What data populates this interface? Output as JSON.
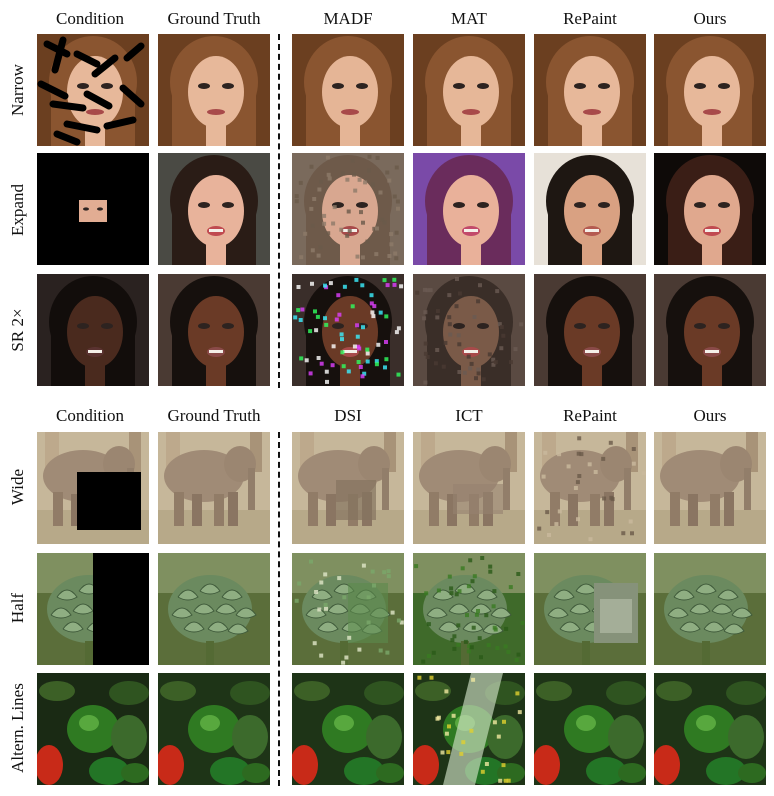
{
  "panel_top": {
    "headers": [
      "Condition",
      "Ground Truth",
      "MADF",
      "MAT",
      "RePaint",
      "Ours"
    ],
    "rows": [
      {
        "label": "Narrow",
        "subject": "face-blonde"
      },
      {
        "label": "Expand",
        "subject": "face-dark"
      },
      {
        "label": "SR 2×",
        "subject": "face-black"
      }
    ]
  },
  "panel_bottom": {
    "headers": [
      "Condition",
      "Ground Truth",
      "DSI",
      "ICT",
      "RePaint",
      "Ours"
    ],
    "rows": [
      {
        "label": "Wide",
        "subject": "elephant"
      },
      {
        "label": "Half",
        "subject": "artichoke"
      },
      {
        "label": "Altern. Lines",
        "subject": "peppers"
      }
    ]
  },
  "colors": {
    "divider": "#111111",
    "mask": "#000000"
  }
}
